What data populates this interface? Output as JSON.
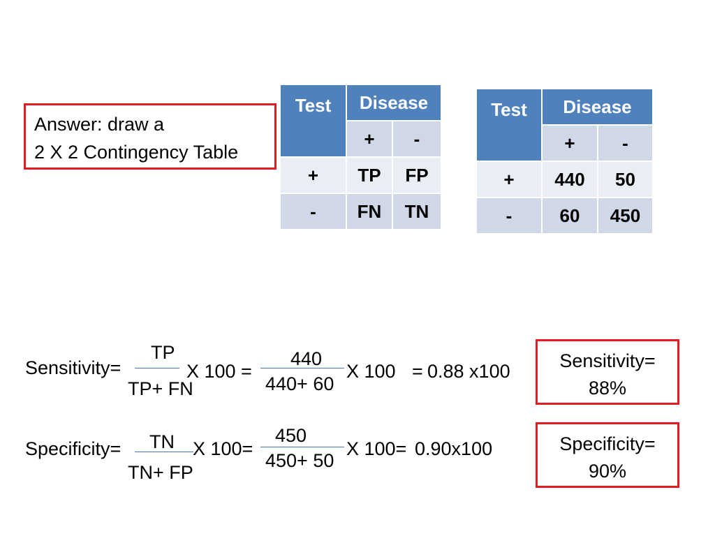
{
  "answer": {
    "line1": "Answer: draw a",
    "line2": "2 X 2 Contingency Table"
  },
  "table_symbolic": {
    "test_header": "Test",
    "disease_header": "Disease",
    "col_pos": "+",
    "col_neg": "-",
    "row_pos": "+",
    "row_neg": "-",
    "tp": "TP",
    "fp": "FP",
    "fn": "FN",
    "tn": "TN"
  },
  "table_numeric": {
    "test_header": "Test",
    "disease_header": "Disease",
    "col_pos": "+",
    "col_neg": "-",
    "row_pos": "+",
    "row_neg": "-",
    "tp": "440",
    "fp": "50",
    "fn": "60",
    "tn": "450"
  },
  "sensitivity": {
    "label": "Sensitivity=",
    "num1": "TP",
    "den1": "TP+ FN",
    "x100a": "X 100 =",
    "num2": "440",
    "den2": "440+ 60",
    "x100b": "X 100",
    "eq": "=",
    "result": "0.88 x100",
    "box_line1": "Sensitivity=",
    "box_line2": "88%"
  },
  "specificity": {
    "label": "Specificity=",
    "num1": "TN",
    "den1": "TN+ FP",
    "x100a": "X 100=",
    "num2": "450",
    "den2": "450+ 50",
    "x100b": "X 100=",
    "result": "0.90x100",
    "box_line1": "Specificity=",
    "box_line2": "90%"
  },
  "colors": {
    "header": "#4f81bd",
    "cell_light": "#e9edf4",
    "cell_dark": "#d0d8e8",
    "box_border": "#e31b23",
    "fraction_line": "#4a74b8"
  }
}
